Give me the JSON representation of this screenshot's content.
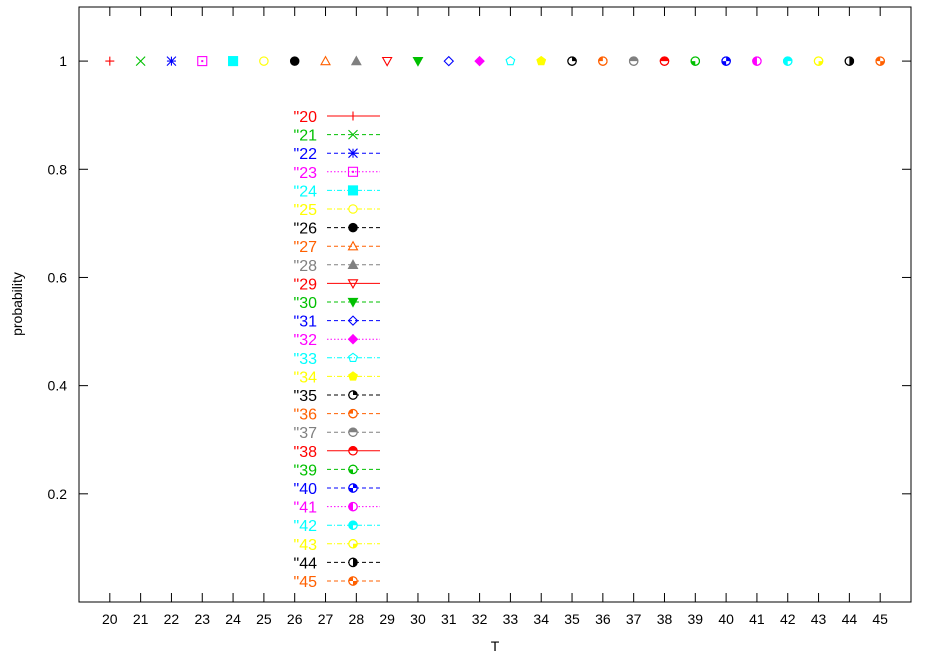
{
  "chart_data": {
    "type": "scatter",
    "title": "",
    "xlabel": "T",
    "ylabel": "probability",
    "x_ticks": [
      20,
      21,
      22,
      23,
      24,
      25,
      26,
      27,
      28,
      29,
      30,
      31,
      32,
      33,
      34,
      35,
      36,
      37,
      38,
      39,
      40,
      41,
      42,
      43,
      44,
      45
    ],
    "y_ticks": [
      0.2,
      0.4,
      0.6,
      0.8,
      1
    ],
    "y_tick_labels": [
      "0.2",
      "0.4",
      "0.6",
      "0.8",
      "1"
    ],
    "xlim": [
      19,
      46
    ],
    "ylim": [
      0,
      1.1
    ],
    "grid": false,
    "legend_position": "center-left",
    "series": [
      {
        "name": "\"20",
        "x": [
          20
        ],
        "y": [
          1
        ],
        "color": "#ff0000",
        "marker": "plus",
        "dash": "solid"
      },
      {
        "name": "\"21",
        "x": [
          21
        ],
        "y": [
          1
        ],
        "color": "#00c000",
        "marker": "cross",
        "dash": "dashed"
      },
      {
        "name": "\"22",
        "x": [
          22
        ],
        "y": [
          1
        ],
        "color": "#0000ff",
        "marker": "star",
        "dash": "dashed"
      },
      {
        "name": "\"23",
        "x": [
          23
        ],
        "y": [
          1
        ],
        "color": "#ff00ff",
        "marker": "square-dot",
        "dash": "dotted"
      },
      {
        "name": "\"24",
        "x": [
          24
        ],
        "y": [
          1
        ],
        "color": "#00ffff",
        "marker": "square-filled",
        "dash": "dashdot"
      },
      {
        "name": "\"25",
        "x": [
          25
        ],
        "y": [
          1
        ],
        "color": "#ffff00",
        "marker": "circle-open",
        "dash": "dashdot"
      },
      {
        "name": "\"26",
        "x": [
          26
        ],
        "y": [
          1
        ],
        "color": "#000000",
        "marker": "circle-filled",
        "dash": "dashed"
      },
      {
        "name": "\"27",
        "x": [
          27
        ],
        "y": [
          1
        ],
        "color": "#ff6000",
        "marker": "triangle-open",
        "dash": "dashed"
      },
      {
        "name": "\"28",
        "x": [
          28
        ],
        "y": [
          1
        ],
        "color": "#808080",
        "marker": "triangle-filled",
        "dash": "dashed"
      },
      {
        "name": "\"29",
        "x": [
          29
        ],
        "y": [
          1
        ],
        "color": "#ff0000",
        "marker": "triangle-down-open",
        "dash": "solid"
      },
      {
        "name": "\"30",
        "x": [
          30
        ],
        "y": [
          1
        ],
        "color": "#00c000",
        "marker": "triangle-down-filled",
        "dash": "dashed"
      },
      {
        "name": "\"31",
        "x": [
          31
        ],
        "y": [
          1
        ],
        "color": "#0000ff",
        "marker": "diamond-open",
        "dash": "dashed"
      },
      {
        "name": "\"32",
        "x": [
          32
        ],
        "y": [
          1
        ],
        "color": "#ff00ff",
        "marker": "diamond-filled",
        "dash": "dotted"
      },
      {
        "name": "\"33",
        "x": [
          33
        ],
        "y": [
          1
        ],
        "color": "#00ffff",
        "marker": "pentagon-open",
        "dash": "dashdot"
      },
      {
        "name": "\"34",
        "x": [
          34
        ],
        "y": [
          1
        ],
        "color": "#ffff00",
        "marker": "pentagon-filled",
        "dash": "dashdot"
      },
      {
        "name": "\"35",
        "x": [
          35
        ],
        "y": [
          1
        ],
        "color": "#000000",
        "marker": "circle-q1",
        "dash": "dashed"
      },
      {
        "name": "\"36",
        "x": [
          36
        ],
        "y": [
          1
        ],
        "color": "#ff6000",
        "marker": "circle-q2",
        "dash": "dashed"
      },
      {
        "name": "\"37",
        "x": [
          37
        ],
        "y": [
          1
        ],
        "color": "#808080",
        "marker": "circle-q12",
        "dash": "dashed"
      },
      {
        "name": "\"38",
        "x": [
          38
        ],
        "y": [
          1
        ],
        "color": "#ff0000",
        "marker": "circle-top",
        "dash": "solid"
      },
      {
        "name": "\"39",
        "x": [
          39
        ],
        "y": [
          1
        ],
        "color": "#00c000",
        "marker": "circle-q3",
        "dash": "dashed"
      },
      {
        "name": "\"40",
        "x": [
          40
        ],
        "y": [
          1
        ],
        "color": "#0000ff",
        "marker": "circle-q13",
        "dash": "dashed"
      },
      {
        "name": "\"41",
        "x": [
          41
        ],
        "y": [
          1
        ],
        "color": "#ff00ff",
        "marker": "circle-left",
        "dash": "dotted"
      },
      {
        "name": "\"42",
        "x": [
          42
        ],
        "y": [
          1
        ],
        "color": "#00ffff",
        "marker": "circle-q123",
        "dash": "dashdot"
      },
      {
        "name": "\"43",
        "x": [
          43
        ],
        "y": [
          1
        ],
        "color": "#ffff00",
        "marker": "circle-q4",
        "dash": "dashdot"
      },
      {
        "name": "\"44",
        "x": [
          44
        ],
        "y": [
          1
        ],
        "color": "#000000",
        "marker": "circle-right",
        "dash": "dashed"
      },
      {
        "name": "\"45",
        "x": [
          45
        ],
        "y": [
          1
        ],
        "color": "#ff6000",
        "marker": "circle-q24",
        "dash": "dashed"
      }
    ]
  }
}
